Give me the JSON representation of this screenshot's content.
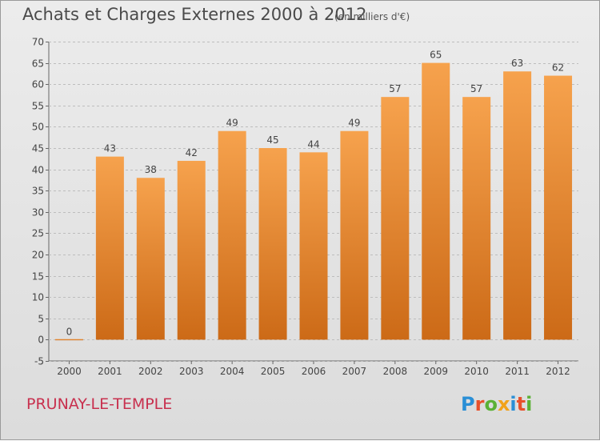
{
  "title": "Achats et Charges Externes 2000 à 2012",
  "unit": "(en milliers d'€)",
  "place": "PRUNAY-LE-TEMPLE",
  "logo_text": "Proxiti",
  "colors": {
    "bar_top": "#f6a24d",
    "bar_bottom": "#cc6a17",
    "place": "#c8304e"
  },
  "chart_data": {
    "type": "bar",
    "categories": [
      "2000",
      "2001",
      "2002",
      "2003",
      "2004",
      "2005",
      "2006",
      "2007",
      "2008",
      "2009",
      "2010",
      "2011",
      "2012"
    ],
    "values": [
      0,
      43,
      38,
      42,
      49,
      45,
      44,
      49,
      57,
      65,
      57,
      63,
      62
    ],
    "ylim": [
      -5,
      70
    ],
    "yticks": [
      -5,
      0,
      5,
      10,
      15,
      20,
      25,
      30,
      35,
      40,
      45,
      50,
      55,
      60,
      65,
      70
    ],
    "grid": true
  }
}
